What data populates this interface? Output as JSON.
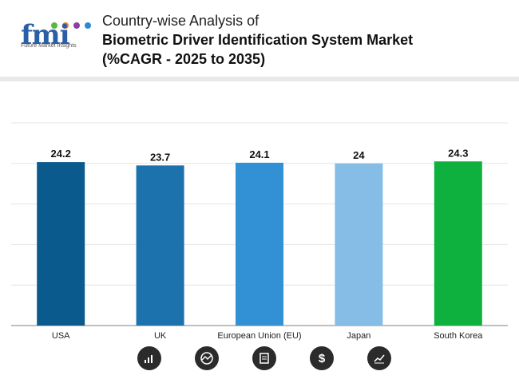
{
  "logo": {
    "text": "fmi",
    "tagline": "Future Market Insights"
  },
  "title": {
    "line1": "Country-wise Analysis of",
    "line2": "Biometric Driver Identification System Market",
    "line3": "(%CAGR - 2025 to 2035)"
  },
  "chart_data": {
    "type": "bar",
    "categories": [
      "USA",
      "UK",
      "European Union (EU)",
      "Japan",
      "South Korea"
    ],
    "values": [
      24.2,
      23.7,
      24.1,
      24,
      24.3
    ],
    "value_labels": [
      "24.2",
      "23.7",
      "24.1",
      "24",
      "24.3"
    ],
    "bar_colors": [
      "#0b5a8e",
      "#1b72ad",
      "#3191d4",
      "#86bde6",
      "#0fb13e"
    ],
    "ylim": [
      0,
      30
    ],
    "grid": true,
    "title": "Country-wise Analysis of Biometric Driver Identification System Market (%CAGR - 2025 to 2035)",
    "xlabel": "",
    "ylabel": ""
  },
  "footer": {
    "icons": [
      "bar-chart-icon",
      "chart-circle-icon",
      "document-icon",
      "dollar-icon",
      "trend-chart-icon"
    ],
    "dollar_glyph": "$"
  }
}
